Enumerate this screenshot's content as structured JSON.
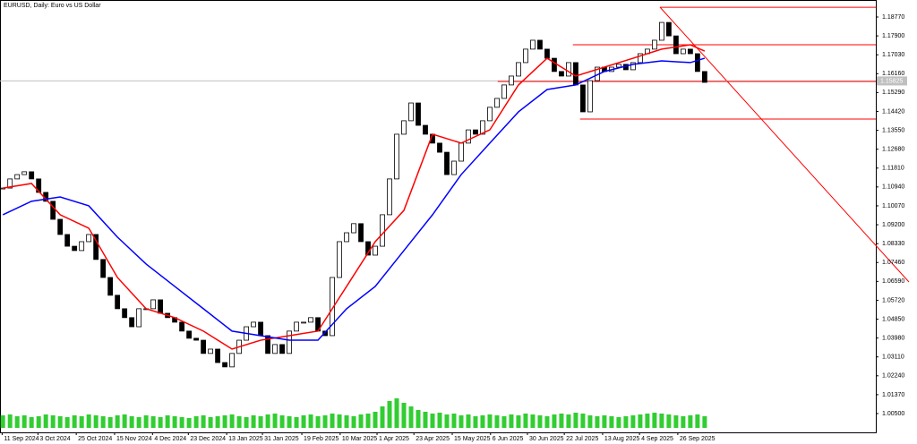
{
  "chart_data": {
    "type": "candlestick",
    "title": "EURUSD, Daily: Euro vs US Dollar",
    "current_price": {
      "value": 1.15825,
      "label": "1.15825"
    },
    "ylim": [
      0.99634,
      1.19554
    ],
    "xlim": [
      -0.4,
      121.9
    ],
    "yticks": [
      {
        "value": 1.1877,
        "label": "1.18770"
      },
      {
        "value": 1.179,
        "label": "1.17900"
      },
      {
        "value": 1.1703,
        "label": "1.17030"
      },
      {
        "value": 1.1616,
        "label": "1.16160"
      },
      {
        "value": 1.1529,
        "label": "1.15290"
      },
      {
        "value": 1.1442,
        "label": "1.14420"
      },
      {
        "value": 1.1355,
        "label": "1.13550"
      },
      {
        "value": 1.1268,
        "label": "1.12680"
      },
      {
        "value": 1.1181,
        "label": "1.11810"
      },
      {
        "value": 1.1094,
        "label": "1.10940"
      },
      {
        "value": 1.1007,
        "label": "1.10070"
      },
      {
        "value": 1.092,
        "label": "1.09200"
      },
      {
        "value": 1.0833,
        "label": "1.08330"
      },
      {
        "value": 1.0746,
        "label": "1.07460"
      },
      {
        "value": 1.0659,
        "label": "1.06590"
      },
      {
        "value": 1.0572,
        "label": "1.05720"
      },
      {
        "value": 1.0485,
        "label": "1.04850"
      },
      {
        "value": 1.0398,
        "label": "1.03980"
      },
      {
        "value": 1.0311,
        "label": "1.03110"
      },
      {
        "value": 1.0224,
        "label": "1.02240"
      },
      {
        "value": 1.0137,
        "label": "1.01370"
      },
      {
        "value": 1.005,
        "label": "1.00500"
      }
    ],
    "xticks": [
      {
        "value": -0.1,
        "label": "11 Sep 2024"
      },
      {
        "value": 4.9,
        "label": "3 Oct 2024"
      },
      {
        "value": 10.25,
        "label": "25 Oct 2024"
      },
      {
        "value": 15.6,
        "label": "15 Nov 2024"
      },
      {
        "value": 20.9,
        "label": "4 Dec 2024"
      },
      {
        "value": 25.9,
        "label": "23 Dec 2024"
      },
      {
        "value": 31.25,
        "label": "13 Jan 2025"
      },
      {
        "value": 36.25,
        "label": "31 Jan 2025"
      },
      {
        "value": 41.75,
        "label": "19 Feb 2025"
      },
      {
        "value": 47.1,
        "label": "10 Mar 2025"
      },
      {
        "value": 52.25,
        "label": "1 Apr 2025"
      },
      {
        "value": 57.4,
        "label": "23 Apr 2025"
      },
      {
        "value": 62.75,
        "label": "15 May 2025"
      },
      {
        "value": 68.1,
        "label": "6 Jun 2025"
      },
      {
        "value": 73.25,
        "label": "30 Jun 2025"
      },
      {
        "value": 78.4,
        "label": "22 Jul 2025"
      },
      {
        "value": 83.75,
        "label": "13 Aug 2025"
      },
      {
        "value": 88.9,
        "label": "4 Sep 2025"
      },
      {
        "value": 94.25,
        "label": "26 Sep 2025"
      }
    ],
    "closes": [
      1.1089,
      1.1131,
      1.1151,
      1.1164,
      1.1131,
      1.1069,
      1.1028,
      1.0945,
      1.0875,
      1.0821,
      1.0801,
      1.0842,
      1.0875,
      1.076,
      1.0677,
      1.0595,
      1.0533,
      1.0492,
      1.045,
      1.0533,
      1.0533,
      1.0574,
      1.0512,
      1.0492,
      1.0471,
      1.043,
      1.0397,
      1.0388,
      1.0327,
      1.0347,
      1.0285,
      1.0265,
      1.0327,
      1.0388,
      1.045,
      1.0471,
      1.0409,
      1.0327,
      1.0368,
      1.0327,
      1.043,
      1.0471,
      1.0471,
      1.0492,
      1.043,
      1.0409,
      1.0677,
      1.0842,
      1.0883,
      1.0925,
      1.0842,
      1.078,
      1.0821,
      1.0966,
      1.1131,
      1.1337,
      1.1399,
      1.1481,
      1.1378,
      1.1337,
      1.1296,
      1.1254,
      1.1151,
      1.1213,
      1.1296,
      1.1357,
      1.1337,
      1.1399,
      1.1461,
      1.1502,
      1.1564,
      1.1605,
      1.1667,
      1.1729,
      1.177,
      1.1729,
      1.1687,
      1.1626,
      1.1605,
      1.1667,
      1.1564,
      1.144,
      1.1584,
      1.1646,
      1.1626,
      1.1646,
      1.1659,
      1.1634,
      1.1667,
      1.1708,
      1.1729,
      1.177,
      1.1852,
      1.179,
      1.1708,
      1.1729,
      1.1708,
      1.1626,
      1.1576
    ],
    "volume": [
      14,
      15,
      13,
      14,
      12,
      13,
      15,
      14,
      13,
      12,
      14,
      13,
      15,
      14,
      13,
      12,
      14,
      15,
      13,
      12,
      14,
      13,
      12,
      14,
      13,
      12,
      11,
      13,
      14,
      12,
      13,
      14,
      15,
      13,
      12,
      14,
      13,
      15,
      16,
      14,
      13,
      12,
      14,
      15,
      13,
      14,
      16,
      15,
      14,
      13,
      15,
      16,
      18,
      24,
      30,
      33,
      28,
      24,
      20,
      18,
      16,
      17,
      15,
      16,
      14,
      15,
      13,
      14,
      15,
      14,
      13,
      15,
      14,
      16,
      15,
      14,
      13,
      15,
      16,
      15,
      17,
      16,
      14,
      13,
      14,
      13,
      12,
      13,
      14,
      15,
      16,
      17,
      16,
      15,
      14,
      13,
      14,
      15,
      13
    ],
    "ma_x": [
      0,
      4,
      8,
      12,
      16,
      20,
      24,
      28,
      32,
      36,
      40,
      44,
      48,
      52,
      56,
      60,
      64,
      68,
      72,
      76,
      80,
      84,
      88,
      92,
      96,
      98
    ],
    "series": [
      {
        "name": "MA fast",
        "color": "#ff0000",
        "values": [
          1.1089,
          1.111,
          1.0966,
          1.0904,
          1.0677,
          1.0533,
          1.0492,
          1.043,
          1.0347,
          1.0388,
          1.0409,
          1.043,
          1.0636,
          1.0842,
          1.0986,
          1.1337,
          1.1296,
          1.1357,
          1.1564,
          1.1687,
          1.1605,
          1.1646,
          1.1687,
          1.1729,
          1.1749,
          1.172
        ]
      },
      {
        "name": "MA slow",
        "color": "#0000ff",
        "values": [
          1.0966,
          1.1028,
          1.1048,
          1.1007,
          1.0863,
          1.0739,
          1.0636,
          1.0533,
          1.043,
          1.0409,
          1.0388,
          1.0388,
          1.0533,
          1.0636,
          1.0801,
          1.0966,
          1.1151,
          1.1296,
          1.144,
          1.1543,
          1.1564,
          1.1626,
          1.1659,
          1.1675,
          1.1667,
          1.1687
        ]
      }
    ],
    "levels": [
      {
        "value": 1.1922,
        "from": 91.8
      },
      {
        "value": 1.1749,
        "from": 79.6
      },
      {
        "value": 1.158,
        "from": 69.1
      },
      {
        "value": 1.1407,
        "from": 80.6
      }
    ]
  }
}
